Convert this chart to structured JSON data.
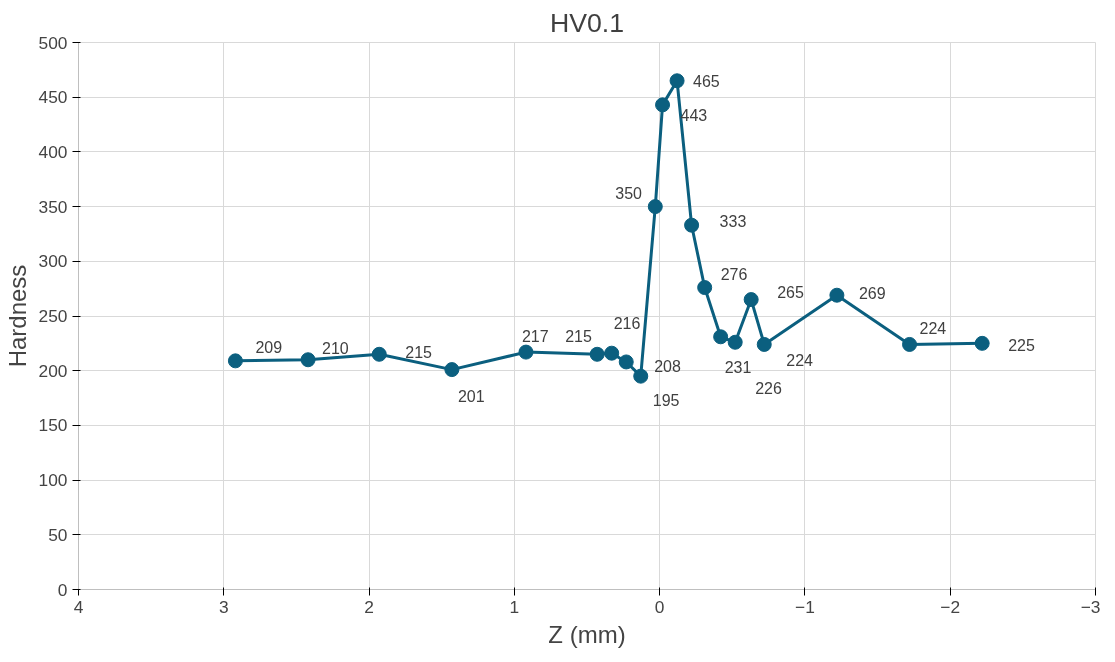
{
  "chart_data": {
    "type": "line",
    "title": "HV0.1",
    "xlabel": "Z (mm)",
    "ylabel": "Hardness",
    "x": [
      2.92,
      2.42,
      1.93,
      1.43,
      0.92,
      0.43,
      0.33,
      0.23,
      0.13,
      0.03,
      -0.02,
      -0.12,
      -0.22,
      -0.31,
      -0.42,
      -0.52,
      -0.63,
      -0.72,
      -1.22,
      -1.72,
      -2.22
    ],
    "series": [
      {
        "color": "#0b5f7f",
        "values": [
          209,
          210,
          215,
          201,
          217,
          215,
          216,
          208,
          195,
          350,
          443,
          465,
          333,
          276,
          231,
          226,
          265,
          224,
          269,
          224,
          225
        ]
      }
    ],
    "xlim": [
      4,
      -3
    ],
    "xticks": [
      4,
      3,
      2,
      1,
      0,
      -1,
      -2,
      -3
    ],
    "ylim": [
      0,
      500
    ],
    "yticks": [
      0,
      50,
      100,
      150,
      200,
      250,
      300,
      350,
      400,
      450,
      500
    ],
    "grid": true,
    "marker": "circle",
    "line_style": "solid",
    "data_labels": true
  }
}
